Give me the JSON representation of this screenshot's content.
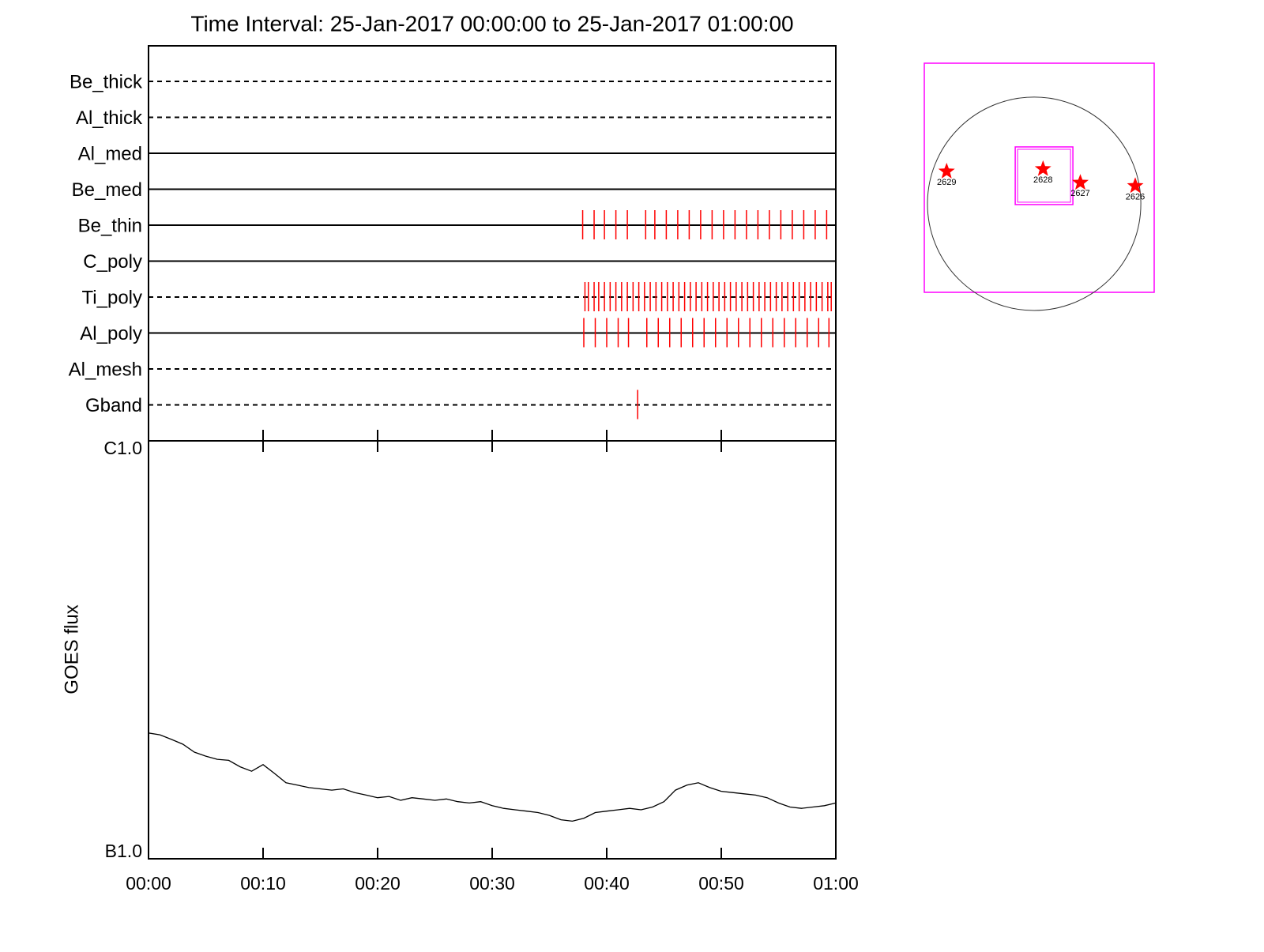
{
  "chart_data": [
    {
      "type": "event",
      "title": "Time Interval: 25-Jan-2017 00:00:00 to 25-Jan-2017 01:00:00",
      "color": "#ff0000",
      "xlim": [
        0,
        60
      ],
      "rows": [
        {
          "name": "Be_thick",
          "style": "dashed",
          "events": []
        },
        {
          "name": "Al_thick",
          "style": "dashed",
          "events": []
        },
        {
          "name": "Al_med",
          "style": "solid",
          "events": []
        },
        {
          "name": "Be_med",
          "style": "solid",
          "events": []
        },
        {
          "name": "Be_thin",
          "style": "solid",
          "events": [
            37.9,
            38.9,
            39.8,
            40.8,
            41.8,
            43.4,
            44.2,
            45.2,
            46.2,
            47.2,
            48.2,
            49.2,
            50.2,
            51.2,
            52.2,
            53.2,
            54.2,
            55.2,
            56.2,
            57.2,
            58.2,
            59.2
          ]
        },
        {
          "name": "C_poly",
          "style": "solid",
          "events": []
        },
        {
          "name": "Ti_poly",
          "style": "dashed",
          "events": [
            38.1,
            38.4,
            38.9,
            39.3,
            39.8,
            40.3,
            40.8,
            41.3,
            41.8,
            42.3,
            42.8,
            43.3,
            43.8,
            44.3,
            44.8,
            45.3,
            45.8,
            46.3,
            46.8,
            47.3,
            47.8,
            48.3,
            48.8,
            49.3,
            49.8,
            50.3,
            50.8,
            51.3,
            51.8,
            52.3,
            52.8,
            53.3,
            53.8,
            54.3,
            54.8,
            55.3,
            55.8,
            56.3,
            56.8,
            57.3,
            57.8,
            58.3,
            58.8,
            59.3,
            59.6
          ]
        },
        {
          "name": "Al_poly",
          "style": "solid",
          "events": [
            38.0,
            39.0,
            40.0,
            41.0,
            41.9,
            43.5,
            44.5,
            45.5,
            46.5,
            47.5,
            48.5,
            49.5,
            50.5,
            51.5,
            52.5,
            53.5,
            54.5,
            55.5,
            56.5,
            57.5,
            58.5,
            59.4
          ]
        },
        {
          "name": "Al_mesh",
          "style": "dashed",
          "events": []
        },
        {
          "name": "Gband",
          "style": "dashed",
          "events": [
            42.7
          ]
        }
      ]
    },
    {
      "type": "line",
      "y_label": "GOES flux",
      "log_y": true,
      "xlim": [
        0,
        60
      ],
      "xticks": [
        {
          "value": 0,
          "label": "00:00"
        },
        {
          "value": 10,
          "label": "00:10"
        },
        {
          "value": 20,
          "label": "00:20"
        },
        {
          "value": 30,
          "label": "00:30"
        },
        {
          "value": 40,
          "label": "00:40"
        },
        {
          "value": 50,
          "label": "00:50"
        },
        {
          "value": 60,
          "label": "01:00"
        }
      ],
      "ylim": [
        1e-07,
        1e-06
      ],
      "yticks": [
        {
          "value": 1e-07,
          "label": "B1.0"
        },
        {
          "value": 1e-06,
          "label": "C1.0"
        }
      ],
      "x": [
        0,
        1,
        2,
        3,
        4,
        5,
        6,
        7,
        8,
        9,
        10,
        11,
        12,
        13,
        14,
        15,
        16,
        17,
        18,
        19,
        20,
        21,
        22,
        23,
        24,
        25,
        26,
        27,
        28,
        29,
        30,
        31,
        32,
        33,
        34,
        35,
        36,
        37,
        38,
        39,
        40,
        41,
        42,
        43,
        44,
        45,
        46,
        47,
        48,
        49,
        50,
        51,
        52,
        53,
        54,
        55,
        56,
        57,
        58,
        59,
        60
      ],
      "series": [
        {
          "color": "#000000",
          "values": [
            2e-07,
            1.98e-07,
            1.93e-07,
            1.88e-07,
            1.8e-07,
            1.76e-07,
            1.73e-07,
            1.72e-07,
            1.66e-07,
            1.62e-07,
            1.68e-07,
            1.6e-07,
            1.52e-07,
            1.5e-07,
            1.48e-07,
            1.47e-07,
            1.46e-07,
            1.47e-07,
            1.44e-07,
            1.42e-07,
            1.4e-07,
            1.41e-07,
            1.38e-07,
            1.4e-07,
            1.39e-07,
            1.38e-07,
            1.39e-07,
            1.37e-07,
            1.36e-07,
            1.37e-07,
            1.34e-07,
            1.32e-07,
            1.31e-07,
            1.3e-07,
            1.29e-07,
            1.27e-07,
            1.24e-07,
            1.23e-07,
            1.25e-07,
            1.29e-07,
            1.3e-07,
            1.31e-07,
            1.32e-07,
            1.31e-07,
            1.33e-07,
            1.37e-07,
            1.46e-07,
            1.5e-07,
            1.52e-07,
            1.48e-07,
            1.45e-07,
            1.44e-07,
            1.43e-07,
            1.42e-07,
            1.4e-07,
            1.36e-07,
            1.33e-07,
            1.32e-07,
            1.33e-07,
            1.34e-07,
            1.36e-07
          ]
        }
      ]
    },
    {
      "type": "map",
      "color": "#ff0000",
      "frame_color": "#ff00ff",
      "xlim": [
        -1004,
        1097
      ],
      "ylim": [
        -809,
        1285
      ],
      "disk_radius": 975,
      "fov": [
        -173,
        354,
        -7,
        520
      ],
      "regions": [
        {
          "name": "2629",
          "x": -800,
          "y": 296
        },
        {
          "name": "2628",
          "x": 81,
          "y": 318
        },
        {
          "name": "2627",
          "x": 422,
          "y": 193
        },
        {
          "name": "2626",
          "x": 924,
          "y": 163
        }
      ]
    }
  ]
}
